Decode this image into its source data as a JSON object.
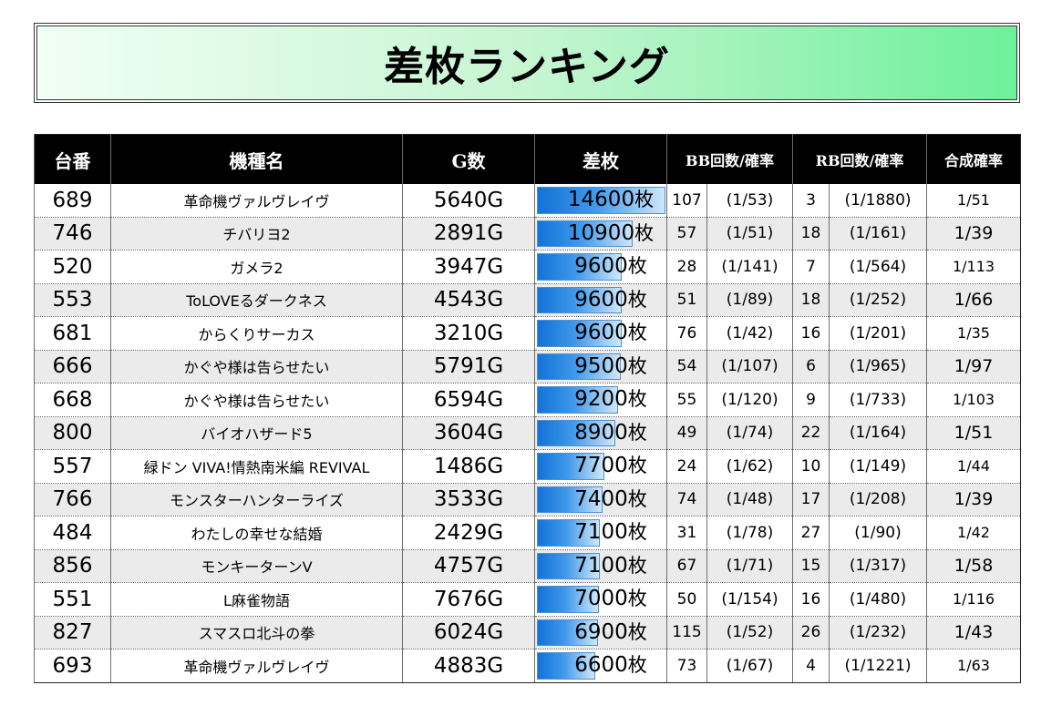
{
  "title": "差枚ランキング",
  "headers": {
    "no": "台番",
    "name": "機種名",
    "g": "G数",
    "samai": "差枚",
    "bb": "BB回数/確率",
    "rb": "RB回数/確率",
    "combined": "合成確率"
  },
  "rows": [
    {
      "no": "689",
      "name": "革命機ヴァルヴレイヴ",
      "g": "5640G",
      "samai": "14600",
      "unit": "枚",
      "bar": 1.0,
      "bb": "107",
      "bb_prob": "(1/53)",
      "rb": "3",
      "rb_prob": "(1/1880)",
      "combined": "1/51"
    },
    {
      "no": "746",
      "name": "チバリヨ2",
      "g": "2891G",
      "samai": "10900",
      "unit": "枚",
      "bar": 0.747,
      "bb": "57",
      "bb_prob": "(1/51)",
      "rb": "18",
      "rb_prob": "(1/161)",
      "combined": "1/39"
    },
    {
      "no": "520",
      "name": "ガメラ2",
      "g": "3947G",
      "samai": "9600",
      "unit": "枚",
      "bar": 0.658,
      "bb": "28",
      "bb_prob": "(1/141)",
      "rb": "7",
      "rb_prob": "(1/564)",
      "combined": "1/113"
    },
    {
      "no": "553",
      "name": "ToLOVEるダークネス",
      "g": "4543G",
      "samai": "9600",
      "unit": "枚",
      "bar": 0.658,
      "bb": "51",
      "bb_prob": "(1/89)",
      "rb": "18",
      "rb_prob": "(1/252)",
      "combined": "1/66"
    },
    {
      "no": "681",
      "name": "からくりサーカス",
      "g": "3210G",
      "samai": "9600",
      "unit": "枚",
      "bar": 0.658,
      "bb": "76",
      "bb_prob": "(1/42)",
      "rb": "16",
      "rb_prob": "(1/201)",
      "combined": "1/35"
    },
    {
      "no": "666",
      "name": "かぐや様は告らせたい",
      "g": "5791G",
      "samai": "9500",
      "unit": "枚",
      "bar": 0.651,
      "bb": "54",
      "bb_prob": "(1/107)",
      "rb": "6",
      "rb_prob": "(1/965)",
      "combined": "1/97"
    },
    {
      "no": "668",
      "name": "かぐや様は告らせたい",
      "g": "6594G",
      "samai": "9200",
      "unit": "枚",
      "bar": 0.63,
      "bb": "55",
      "bb_prob": "(1/120)",
      "rb": "9",
      "rb_prob": "(1/733)",
      "combined": "1/103"
    },
    {
      "no": "800",
      "name": "バイオハザード5",
      "g": "3604G",
      "samai": "8900",
      "unit": "枚",
      "bar": 0.61,
      "bb": "49",
      "bb_prob": "(1/74)",
      "rb": "22",
      "rb_prob": "(1/164)",
      "combined": "1/51"
    },
    {
      "no": "557",
      "name": "緑ドン VIVA!情熱南米編 REVIVAL",
      "g": "1486G",
      "samai": "7700",
      "unit": "枚",
      "bar": 0.527,
      "bb": "24",
      "bb_prob": "(1/62)",
      "rb": "10",
      "rb_prob": "(1/149)",
      "combined": "1/44"
    },
    {
      "no": "766",
      "name": "モンスターハンターライズ",
      "g": "3533G",
      "samai": "7400",
      "unit": "枚",
      "bar": 0.507,
      "bb": "74",
      "bb_prob": "(1/48)",
      "rb": "17",
      "rb_prob": "(1/208)",
      "combined": "1/39"
    },
    {
      "no": "484",
      "name": "わたしの幸せな結婚",
      "g": "2429G",
      "samai": "7100",
      "unit": "枚",
      "bar": 0.486,
      "bb": "31",
      "bb_prob": "(1/78)",
      "rb": "27",
      "rb_prob": "(1/90)",
      "combined": "1/42"
    },
    {
      "no": "856",
      "name": "モンキーターンV",
      "g": "4757G",
      "samai": "7100",
      "unit": "枚",
      "bar": 0.486,
      "bb": "67",
      "bb_prob": "(1/71)",
      "rb": "15",
      "rb_prob": "(1/317)",
      "combined": "1/58"
    },
    {
      "no": "551",
      "name": "L麻雀物語",
      "g": "7676G",
      "samai": "7000",
      "unit": "枚",
      "bar": 0.479,
      "bb": "50",
      "bb_prob": "(1/154)",
      "rb": "16",
      "rb_prob": "(1/480)",
      "combined": "1/116"
    },
    {
      "no": "827",
      "name": "スマスロ北斗の拳",
      "g": "6024G",
      "samai": "6900",
      "unit": "枚",
      "bar": 0.473,
      "bb": "115",
      "bb_prob": "(1/52)",
      "rb": "26",
      "rb_prob": "(1/232)",
      "combined": "1/43"
    },
    {
      "no": "693",
      "name": "革命機ヴァルヴレイヴ",
      "g": "4883G",
      "samai": "6600",
      "unit": "枚",
      "bar": 0.452,
      "bb": "73",
      "bb_prob": "(1/67)",
      "rb": "4",
      "rb_prob": "(1/1221)",
      "combined": "1/63"
    }
  ]
}
